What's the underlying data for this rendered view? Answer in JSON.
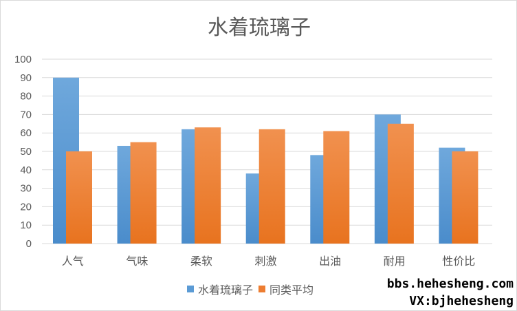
{
  "chart_data": {
    "type": "bar",
    "title": "水着琉璃子",
    "categories": [
      "人气",
      "气味",
      "柔软",
      "刺激",
      "出油",
      "耐用",
      "性价比"
    ],
    "series": [
      {
        "name": "水着琉璃子",
        "values": [
          90,
          53,
          62,
          38,
          48,
          70,
          52
        ],
        "color": "#5b9bd5"
      },
      {
        "name": "同类平均",
        "values": [
          50,
          55,
          63,
          62,
          61,
          65,
          50
        ],
        "color": "#ed7d31"
      }
    ],
    "yticks": [
      "0",
      "10",
      "20",
      "30",
      "40",
      "50",
      "60",
      "70",
      "80",
      "90",
      "100"
    ],
    "ylim": [
      0,
      100
    ],
    "grid": true,
    "legend": "bottom"
  },
  "watermark": {
    "line1": "bbs.hehesheng.com",
    "line2": "VX:bjhehesheng"
  }
}
